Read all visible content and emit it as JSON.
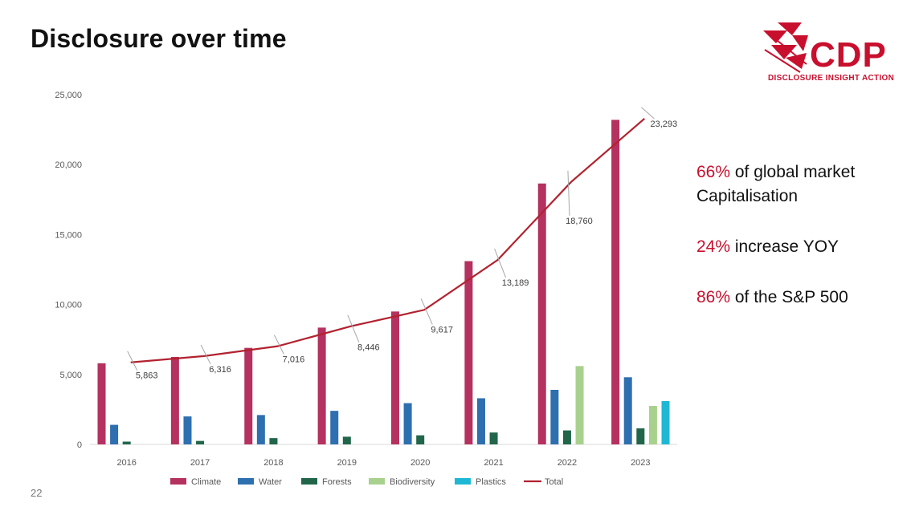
{
  "slide": {
    "title": "Disclosure over time",
    "page_number": "22"
  },
  "logo": {
    "word": "CDP",
    "tagline": "DISCLOSURE INSIGHT ACTION"
  },
  "stats": [
    {
      "pct": "66%",
      "text": " of global market Capitalisation"
    },
    {
      "pct": "24%",
      "text": " increase YOY"
    },
    {
      "pct": "86%",
      "text": " of the S&P 500"
    }
  ],
  "colors": {
    "Climate": "#b5315f",
    "Water": "#2e6fb0",
    "Forests": "#21664a",
    "Biodiversity": "#a9d18e",
    "Plastics": "#1fb8d4",
    "Total": "#b2222f",
    "accent": "#c8102e"
  },
  "chart_data": {
    "type": "bar",
    "categories": [
      "2016",
      "2017",
      "2018",
      "2019",
      "2020",
      "2021",
      "2022",
      "2023"
    ],
    "ylim": [
      0,
      25000
    ],
    "yticks": [
      0,
      5000,
      10000,
      15000,
      20000,
      25000
    ],
    "ytick_labels": [
      "0",
      "5,000",
      "10,000",
      "15,000",
      "20,000",
      "25,000"
    ],
    "legend_position": "bottom",
    "grid": false,
    "series": [
      {
        "name": "Climate",
        "values": [
          5800,
          6250,
          6900,
          8350,
          9500,
          13100,
          18650,
          23200
        ]
      },
      {
        "name": "Water",
        "values": [
          1400,
          2000,
          2100,
          2400,
          2950,
          3300,
          3900,
          4800
        ]
      },
      {
        "name": "Forests",
        "values": [
          200,
          250,
          450,
          550,
          650,
          850,
          1000,
          1150
        ]
      },
      {
        "name": "Biodiversity",
        "values": [
          null,
          null,
          null,
          null,
          null,
          null,
          5600,
          2750
        ]
      },
      {
        "name": "Plastics",
        "values": [
          null,
          null,
          null,
          null,
          null,
          null,
          null,
          3100
        ]
      }
    ],
    "total": {
      "name": "Total",
      "type": "line",
      "values": [
        5863,
        6316,
        7016,
        8446,
        9617,
        13189,
        18760,
        23293
      ],
      "labels": [
        "5,863",
        "6,316",
        "7,016",
        "8,446",
        "9,617",
        "13,189",
        "18,760",
        "23,293"
      ]
    }
  }
}
